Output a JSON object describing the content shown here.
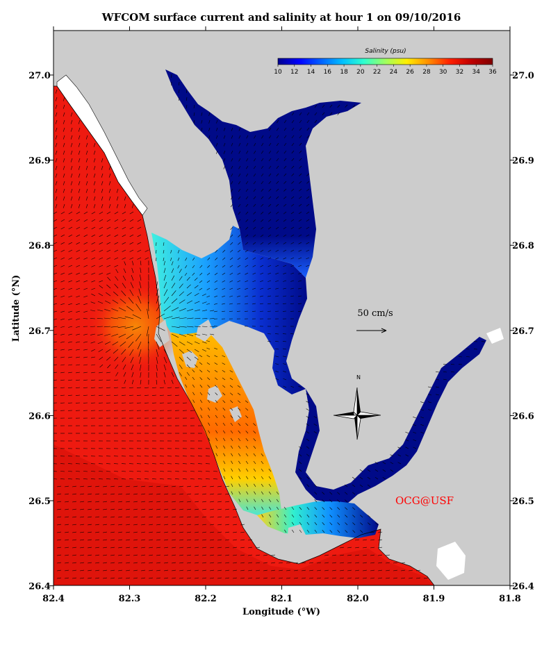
{
  "title": "WFCOM surface current and salinity at hour 1 on 09/10/2016",
  "x_axis": {
    "label": "Longitude (°W)",
    "ticks": [
      "82.4",
      "82.3",
      "82.2",
      "82.1",
      "82.0",
      "81.9",
      "81.8"
    ]
  },
  "y_axis": {
    "label": "Latitude (°N)",
    "ticks": [
      "27.0",
      "26.9",
      "26.8",
      "26.7",
      "26.6",
      "26.5",
      "26.4"
    ]
  },
  "colorbar": {
    "title": "Salinity (psu)",
    "ticks": [
      "10",
      "12",
      "14",
      "16",
      "18",
      "20",
      "22",
      "24",
      "26",
      "28",
      "30",
      "32",
      "34",
      "36"
    ],
    "colors": [
      "#00008f",
      "#0000ff",
      "#0060ff",
      "#00bfff",
      "#30ffcf",
      "#9fff60",
      "#ffef00",
      "#ff8f00",
      "#ff2000",
      "#bf0000",
      "#800000"
    ]
  },
  "scale_vector": {
    "label": "50 cm/s"
  },
  "north_arrow": {
    "label": "N"
  },
  "credit": {
    "text": "OCG@USF"
  },
  "colors": {
    "land": "#cccccc",
    "gulf": "#ee1a10",
    "bay_low": "#000a88",
    "mid": "#ffd21a",
    "vector": "#000000",
    "credit": "#ff0000"
  }
}
